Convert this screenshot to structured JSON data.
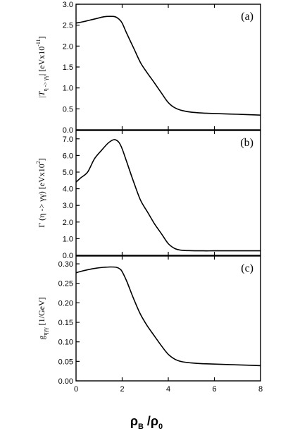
{
  "figure": {
    "xlabel_main": "ρ",
    "xlabel_main_sub": "B",
    "xlabel_sep": " /ρ",
    "xlabel_sep_sub": "0"
  },
  "chart_data": [
    {
      "type": "line",
      "panel_label": "(a)",
      "ylabel_parts": [
        "|",
        "T",
        "η -> γγ",
        "| [eVx10",
        "-11",
        "]"
      ],
      "xlim": [
        0,
        8
      ],
      "ylim": [
        0,
        3.0
      ],
      "x_ticks": [
        "0",
        "2",
        "4",
        "6",
        "8"
      ],
      "x_tick_labels_shown": false,
      "y_ticks": [
        "0.0",
        "0.5",
        "1.0",
        "1.5",
        "2.0",
        "2.5",
        "3.0"
      ],
      "series": [
        {
          "x": [
            0,
            0.3,
            0.6,
            0.9,
            1.2,
            1.5,
            1.7,
            1.85,
            2.0,
            2.2,
            2.5,
            2.8,
            3.1,
            3.4,
            3.7,
            4.0,
            4.3,
            4.6,
            5.0,
            5.5,
            6.0,
            7.0,
            8.0
          ],
          "y": [
            2.55,
            2.58,
            2.62,
            2.66,
            2.7,
            2.71,
            2.7,
            2.65,
            2.55,
            2.3,
            1.95,
            1.6,
            1.35,
            1.12,
            0.88,
            0.65,
            0.52,
            0.46,
            0.42,
            0.4,
            0.39,
            0.37,
            0.35
          ]
        }
      ]
    },
    {
      "type": "line",
      "panel_label": "(b)",
      "ylabel_parts": [
        "Γ (η -> γγ) [eVx10",
        "2",
        "]"
      ],
      "xlim": [
        0,
        8
      ],
      "ylim": [
        0,
        7.5
      ],
      "x_ticks": [
        "0",
        "2",
        "4",
        "6",
        "8"
      ],
      "x_tick_labels_shown": false,
      "y_ticks": [
        "0.0",
        "1.0",
        "2.0",
        "3.0",
        "4.0",
        "5.0",
        "6.0",
        "7.0"
      ],
      "series": [
        {
          "x": [
            0,
            0.2,
            0.5,
            0.8,
            1.1,
            1.4,
            1.65,
            1.85,
            2.0,
            2.2,
            2.5,
            2.8,
            3.1,
            3.4,
            3.7,
            4.0,
            4.3,
            4.6,
            5.0,
            5.5,
            6.0,
            7.0,
            8.0
          ],
          "y": [
            4.4,
            4.65,
            5.0,
            5.8,
            6.3,
            6.75,
            6.95,
            6.8,
            6.4,
            5.6,
            4.4,
            3.3,
            2.6,
            1.9,
            1.3,
            0.7,
            0.4,
            0.3,
            0.28,
            0.27,
            0.27,
            0.27,
            0.27
          ]
        }
      ]
    },
    {
      "type": "line",
      "panel_label": "(c)",
      "ylabel_parts": [
        "g",
        "ηγγ",
        " [1/GeV]"
      ],
      "xlim": [
        0,
        8
      ],
      "ylim": [
        0,
        0.32
      ],
      "x_ticks": [
        "0",
        "2",
        "4",
        "6",
        "8"
      ],
      "x_tick_labels_shown": true,
      "y_ticks": [
        "0.00",
        "0.05",
        "0.10",
        "0.15",
        "0.20",
        "0.25",
        "0.30"
      ],
      "series": [
        {
          "x": [
            0,
            0.3,
            0.6,
            0.9,
            1.2,
            1.5,
            1.75,
            1.9,
            2.0,
            2.2,
            2.5,
            2.8,
            3.1,
            3.4,
            3.7,
            4.0,
            4.3,
            4.6,
            5.0,
            5.5,
            6.0,
            7.0,
            8.0
          ],
          "y": [
            0.277,
            0.282,
            0.286,
            0.289,
            0.291,
            0.292,
            0.291,
            0.287,
            0.28,
            0.255,
            0.21,
            0.17,
            0.14,
            0.115,
            0.09,
            0.068,
            0.055,
            0.049,
            0.046,
            0.044,
            0.043,
            0.041,
            0.039
          ]
        }
      ]
    }
  ]
}
